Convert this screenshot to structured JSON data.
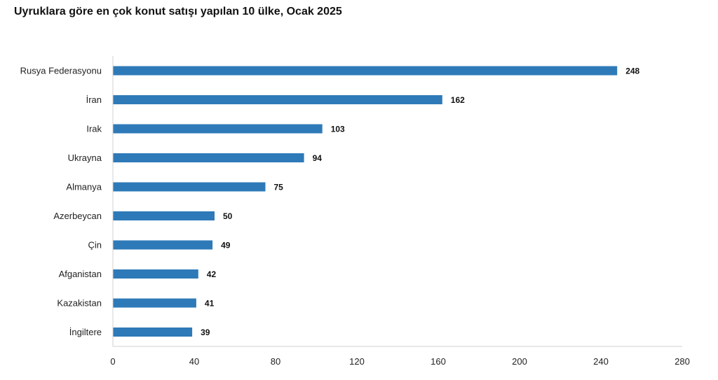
{
  "colors": {
    "bar": "#2e7ab8",
    "axis": "#d0d0d0"
  },
  "chart_data": {
    "type": "bar",
    "orientation": "horizontal",
    "title": "Uyruklara göre en çok konut satışı yapılan 10 ülke, Ocak 2025",
    "xlabel": "",
    "ylabel": "",
    "categories": [
      "Rusya Federasyonu",
      "İran",
      "Irak",
      "Ukrayna",
      "Almanya",
      "Azerbeycan",
      "Çin",
      "Afganistan",
      "Kazakistan",
      "İngiltere"
    ],
    "values": [
      248,
      162,
      103,
      94,
      75,
      50,
      49,
      42,
      41,
      39
    ],
    "value_labels": [
      "248",
      "162",
      "103",
      "94",
      "75",
      "50",
      "49",
      "42",
      "41",
      "39"
    ],
    "xlim": [
      0,
      280
    ],
    "xticks": [
      0,
      40,
      80,
      120,
      160,
      200,
      240,
      280
    ],
    "xtick_labels": [
      "0",
      "40",
      "80",
      "120",
      "160",
      "200",
      "240",
      "280"
    ],
    "grid": false,
    "legend": "none"
  }
}
